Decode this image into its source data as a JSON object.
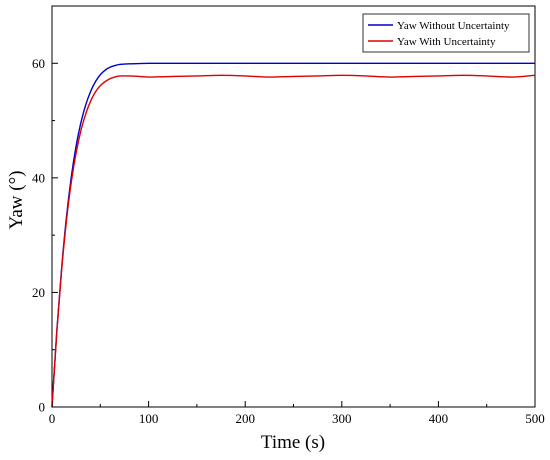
{
  "chart_data": {
    "type": "line",
    "title": "",
    "xlabel": "Time (s)",
    "ylabel": "Yaw (°)",
    "xlim": [
      0,
      500
    ],
    "ylim": [
      0,
      70
    ],
    "x_ticks": [
      0,
      100,
      200,
      300,
      400,
      500
    ],
    "y_ticks": [
      0,
      20,
      40,
      60
    ],
    "grid": false,
    "legend_position": "top-right",
    "series": [
      {
        "name": "Yaw Without Uncertainty",
        "color": "#0000cc",
        "x": [
          0,
          5,
          10,
          15,
          20,
          25,
          30,
          35,
          40,
          45,
          50,
          55,
          60,
          65,
          70,
          80,
          90,
          100,
          120,
          150,
          200,
          300,
          400,
          500
        ],
        "y": [
          0,
          13.3,
          24.3,
          33.2,
          40.2,
          45.6,
          49.7,
          52.8,
          55.1,
          56.8,
          58.0,
          58.8,
          59.3,
          59.6,
          59.8,
          59.9,
          59.95,
          60.0,
          60.0,
          60.0,
          60.0,
          60.0,
          60.0,
          60.0
        ]
      },
      {
        "name": "Yaw With Uncertainty",
        "color": "#dd0000",
        "x": [
          0,
          5,
          10,
          15,
          20,
          25,
          30,
          35,
          40,
          45,
          50,
          55,
          60,
          65,
          70,
          80,
          90,
          100,
          125,
          150,
          175,
          200,
          225,
          250,
          275,
          300,
          325,
          350,
          375,
          400,
          425,
          450,
          475,
          500
        ],
        "y": [
          0,
          13.2,
          24.0,
          32.6,
          39.3,
          44.4,
          48.3,
          51.2,
          53.4,
          55.0,
          56.1,
          56.8,
          57.3,
          57.6,
          57.8,
          57.8,
          57.7,
          57.6,
          57.7,
          57.8,
          57.9,
          57.8,
          57.6,
          57.7,
          57.8,
          57.9,
          57.8,
          57.6,
          57.7,
          57.8,
          57.9,
          57.8,
          57.6,
          57.9
        ]
      }
    ]
  }
}
